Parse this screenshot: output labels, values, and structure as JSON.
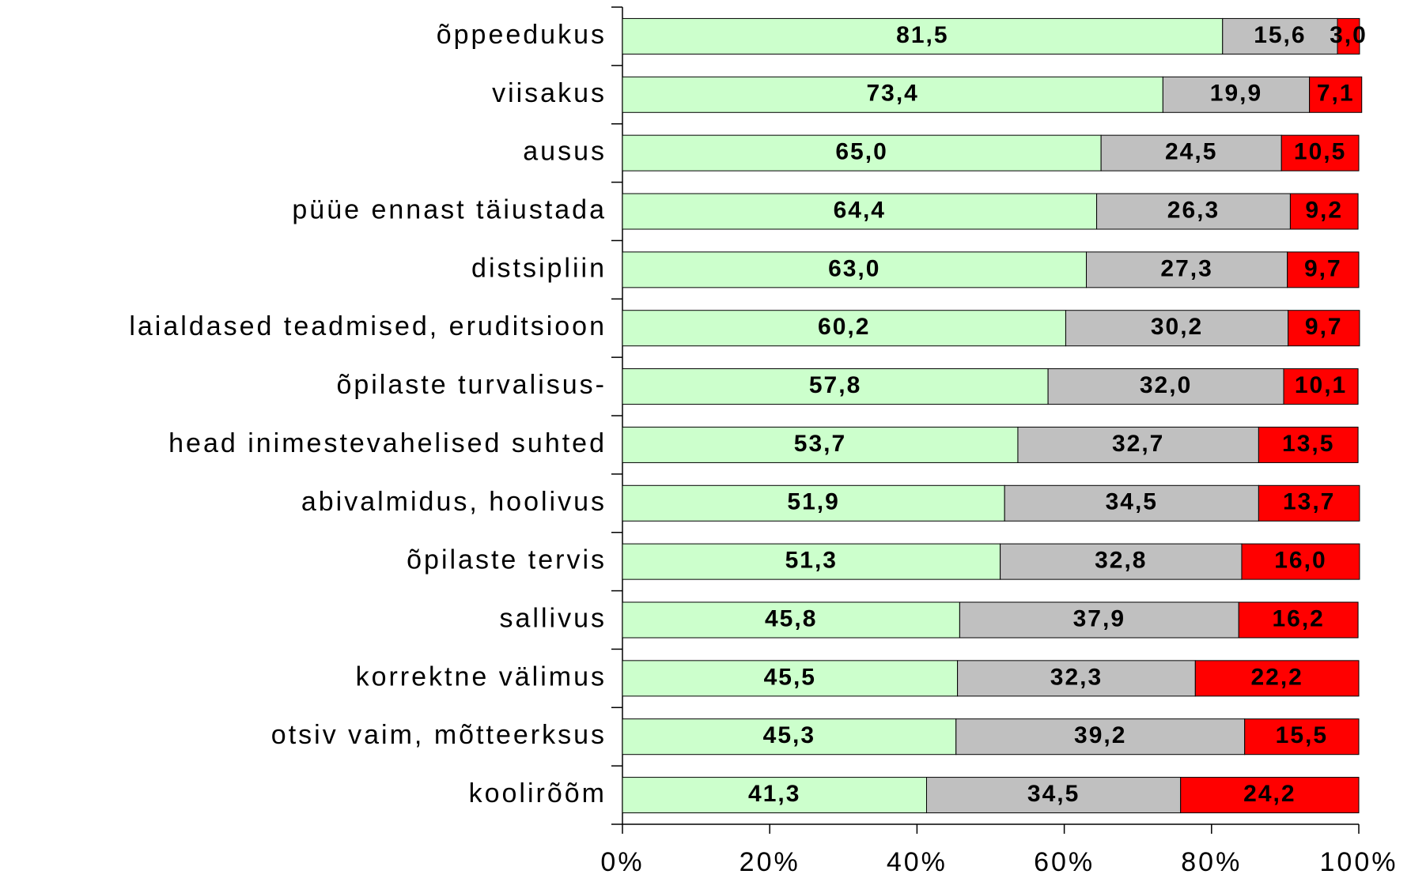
{
  "chart_data": {
    "type": "stacked_barh",
    "categories": [
      "õppeedukus",
      "viisakus",
      "ausus",
      "püüe ennast täiustada",
      "distsipliin",
      "laialdased teadmised, eruditsioon",
      "õpilaste turvalisus-",
      "head inimestevahelised suhted",
      "abivalmidus, hoolivus",
      "õpilaste tervis",
      "sallivus",
      "korrektne välimus",
      "otsiv vaim, mõtteerksus",
      "koolirõõm"
    ],
    "series": [
      {
        "color": "#ccffcc",
        "values": [
          81.5,
          73.4,
          65.0,
          64.4,
          63.0,
          60.2,
          57.8,
          53.7,
          51.9,
          51.3,
          45.8,
          45.5,
          45.3,
          41.3
        ],
        "value_labels": [
          "81,5",
          "73,4",
          "65,0",
          "64,4",
          "63,0",
          "60,2",
          "57,8",
          "53,7",
          "51,9",
          "51,3",
          "45,8",
          "45,5",
          "45,3",
          "41,3"
        ]
      },
      {
        "color": "#c0c0c0",
        "values": [
          15.6,
          19.9,
          24.5,
          26.3,
          27.3,
          30.2,
          32.0,
          32.7,
          34.5,
          32.8,
          37.9,
          32.3,
          39.2,
          34.5
        ],
        "value_labels": [
          "15,6",
          "19,9",
          "24,5",
          "26,3",
          "27,3",
          "30,2",
          "32,0",
          "32,7",
          "34,5",
          "32,8",
          "37,9",
          "32,3",
          "39,2",
          "34,5"
        ]
      },
      {
        "color": "#ff0000",
        "values": [
          3.0,
          7.1,
          10.5,
          9.2,
          9.7,
          9.7,
          10.1,
          13.5,
          13.7,
          16.0,
          16.2,
          22.2,
          15.5,
          24.2
        ],
        "value_labels": [
          "3,0",
          "7,1",
          "10,5",
          "9,2",
          "9,7",
          "9,7",
          "10,1",
          "13,5",
          "13,7",
          "16,0",
          "16,2",
          "22,2",
          "15,5",
          "24,2"
        ]
      }
    ],
    "xlim": [
      0,
      100
    ],
    "xticks": [
      {
        "value": 0,
        "label": "0%"
      },
      {
        "value": 20,
        "label": "20%"
      },
      {
        "value": 40,
        "label": "40%"
      },
      {
        "value": 60,
        "label": "60%"
      },
      {
        "value": 80,
        "label": "80%"
      },
      {
        "value": 100,
        "label": "100%"
      }
    ]
  }
}
